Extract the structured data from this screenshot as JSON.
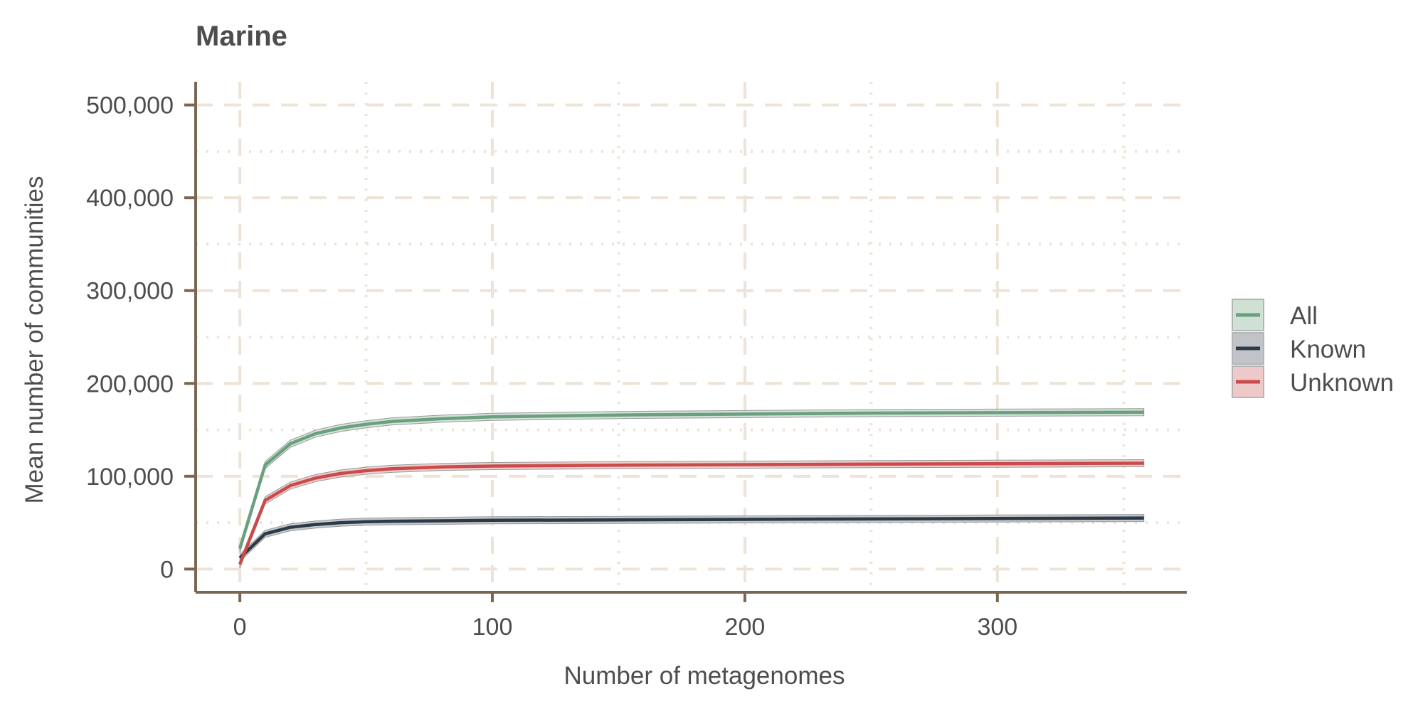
{
  "chart_data": {
    "type": "line",
    "title": "Marine",
    "xlabel": "Number of metagenomes",
    "ylabel": "Mean number of communities",
    "xlim": [
      -17.5,
      375
    ],
    "ylim": [
      -25000,
      525000
    ],
    "x_ticks": [
      0,
      100,
      200,
      300
    ],
    "x_tick_labels": [
      "0",
      "100",
      "200",
      "300"
    ],
    "y_ticks": [
      0,
      100000,
      200000,
      300000,
      400000,
      500000
    ],
    "y_tick_labels": [
      "0",
      "100,000",
      "200,000",
      "300,000",
      "400,000",
      "500,000"
    ],
    "grid": true,
    "legend_position": "right",
    "x": [
      0,
      10,
      20,
      30,
      40,
      50,
      60,
      80,
      100,
      150,
      200,
      250,
      300,
      358
    ],
    "series": [
      {
        "name": "All",
        "color": "#6a9f7f",
        "band_color": "#cfe1d5",
        "values": [
          22000,
          112000,
          135000,
          146000,
          152000,
          156000,
          159000,
          162000,
          164000,
          166000,
          167000,
          168000,
          168500,
          169000
        ]
      },
      {
        "name": "Known",
        "color": "#2c3a47",
        "band_color": "#c0c4c8",
        "values": [
          12000,
          38000,
          45000,
          48000,
          50000,
          51000,
          51500,
          52000,
          52500,
          53000,
          53500,
          54000,
          54500,
          55000
        ]
      },
      {
        "name": "Unknown",
        "color": "#c94b4b",
        "band_color": "#edc9c9",
        "values": [
          5000,
          74000,
          90000,
          98000,
          103000,
          106000,
          108000,
          110000,
          111000,
          112000,
          112500,
          113000,
          113500,
          114000
        ]
      }
    ],
    "axis_color": "#7a6752",
    "grid_color": "#ede3d6"
  }
}
